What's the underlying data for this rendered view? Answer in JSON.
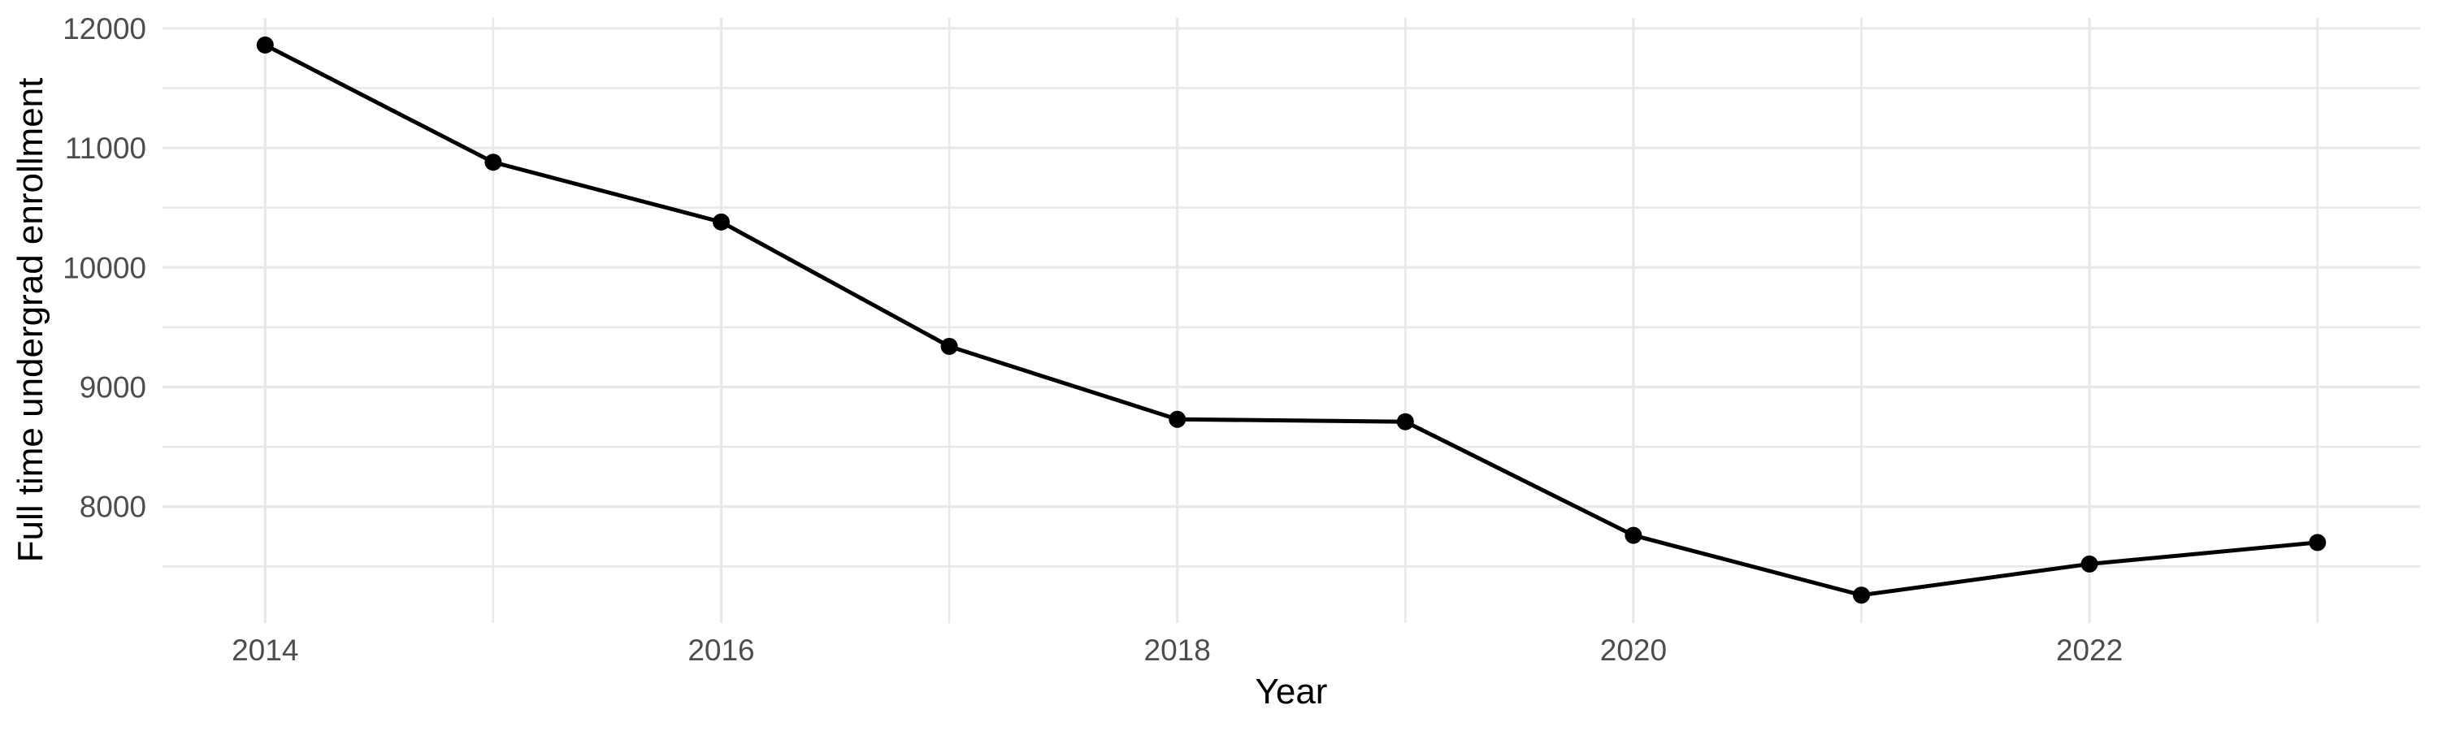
{
  "chart_data": {
    "type": "line",
    "title": "",
    "xlabel": "Year",
    "ylabel": "Full time undergrad enrollment",
    "x": [
      2014,
      2015,
      2016,
      2017,
      2018,
      2019,
      2020,
      2021,
      2022,
      2023
    ],
    "series": [
      {
        "name": "Full time undergrad enrollment",
        "values": [
          11860,
          10880,
          10380,
          9340,
          8730,
          8710,
          7760,
          7260,
          7520,
          7700
        ]
      }
    ],
    "x_tick_labels": [
      "2014",
      "2016",
      "2018",
      "2020",
      "2022"
    ],
    "x_ticks": [
      2014,
      2016,
      2018,
      2020,
      2022
    ],
    "x_minor_gridlines": [
      2015,
      2017,
      2019,
      2021,
      2023
    ],
    "y_tick_labels": [
      "12000",
      "11000",
      "10000",
      "9000",
      "8000"
    ],
    "y_ticks": [
      12000,
      11000,
      10000,
      9000,
      8000
    ],
    "y_minor_gridlines": [
      11500,
      10500,
      9500,
      8500,
      7500
    ],
    "xlim": [
      2013.55,
      2023.45
    ],
    "ylim": [
      7027,
      12087
    ],
    "grid": true,
    "legend": "none",
    "colors": {
      "background": "#ffffff",
      "gridline": "#e8e8e8",
      "line": "#000000",
      "point": "#000000",
      "tick_label": "#4d4d4d",
      "axis_title": "#000000"
    }
  }
}
